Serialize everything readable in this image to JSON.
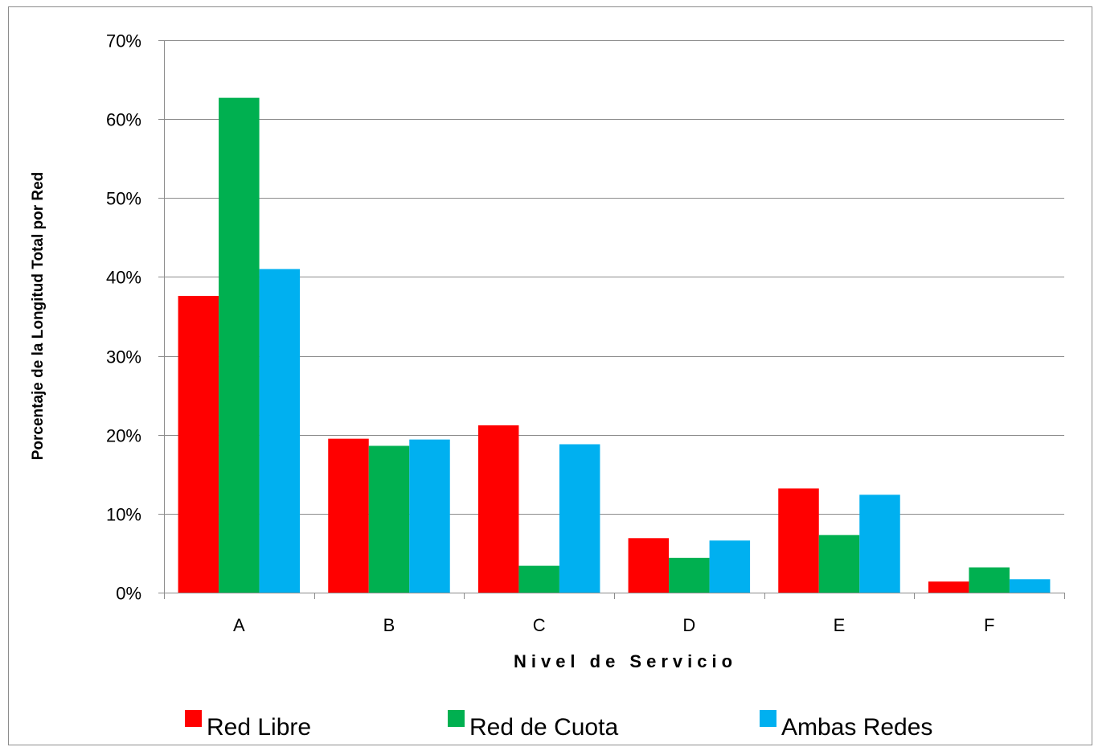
{
  "chart_data": {
    "type": "bar",
    "categories": [
      "A",
      "B",
      "C",
      "D",
      "E",
      "F"
    ],
    "series": [
      {
        "name": "Red Libre",
        "color": "#ff0000",
        "values": [
          37.6,
          19.5,
          21.2,
          6.9,
          13.2,
          1.4
        ]
      },
      {
        "name": "Red de Cuota",
        "color": "#00b050",
        "values": [
          62.7,
          18.6,
          3.4,
          4.4,
          7.3,
          3.2
        ]
      },
      {
        "name": "Ambas Redes",
        "color": "#00b0f0",
        "values": [
          41.0,
          19.4,
          18.8,
          6.6,
          12.4,
          1.7
        ]
      }
    ],
    "xlabel": "Nivel de Servicio",
    "ylabel": "Porcentaje de la Longitud Total por Red",
    "ylim": [
      0,
      70
    ],
    "yticks": [
      0,
      10,
      20,
      30,
      40,
      50,
      60,
      70
    ],
    "ytick_labels": [
      "0%",
      "10%",
      "20%",
      "30%",
      "40%",
      "50%",
      "60%",
      "70%"
    ],
    "grid": true,
    "legend_position": "bottom"
  }
}
